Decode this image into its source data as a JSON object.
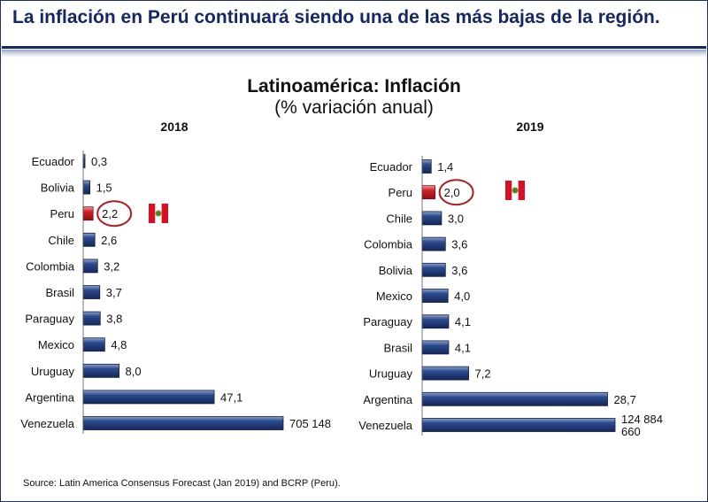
{
  "header": {
    "title": "La inflación en Perú continuará siendo una de las más bajas de la región."
  },
  "source": "Source: Latin America Consensus Forecast (Jan 2019) and BCRP (Peru).",
  "colors": {
    "bar": "#1f3a78",
    "highlight": "#c8161d",
    "circle": "#b01c22",
    "title": "#152767"
  },
  "icons": {
    "flag": "peru-flag-icon"
  },
  "chart_data": [
    {
      "type": "bar",
      "orientation": "horizontal",
      "title": "Latinoamérica: Inflación",
      "subtitle": "(% variación anual)",
      "panel_label": "2018",
      "categories": [
        "Ecuador",
        "Bolivia",
        "Peru",
        "Chile",
        "Colombia",
        "Brasil",
        "Paraguay",
        "Mexico",
        "Uruguay",
        "Argentina",
        "Venezuela"
      ],
      "values": [
        0.3,
        1.5,
        2.2,
        2.6,
        3.2,
        3.7,
        3.8,
        4.8,
        8.0,
        47.1,
        705148
      ],
      "labels": [
        "0,3",
        "1,5",
        "2,2",
        "2,6",
        "3,2",
        "3,7",
        "3,8",
        "4,8",
        "8,0",
        "47,1",
        "705 148"
      ],
      "highlight": "Peru",
      "axis_break": true
    },
    {
      "type": "bar",
      "orientation": "horizontal",
      "panel_label": "2019",
      "categories": [
        "Ecuador",
        "Peru",
        "Chile",
        "Colombia",
        "Bolivia",
        "Mexico",
        "Paraguay",
        "Brasil",
        "Uruguay",
        "Argentina",
        "Venezuela"
      ],
      "values": [
        1.4,
        2.0,
        3.0,
        3.6,
        3.6,
        4.0,
        4.1,
        4.1,
        7.2,
        28.7,
        124884660
      ],
      "labels": [
        "1,4",
        "2,0",
        "3,0",
        "3,6",
        "3,6",
        "4,0",
        "4,1",
        "4,1",
        "7,2",
        "28,7",
        "124 884\n660"
      ],
      "highlight": "Peru",
      "axis_break": true
    }
  ]
}
